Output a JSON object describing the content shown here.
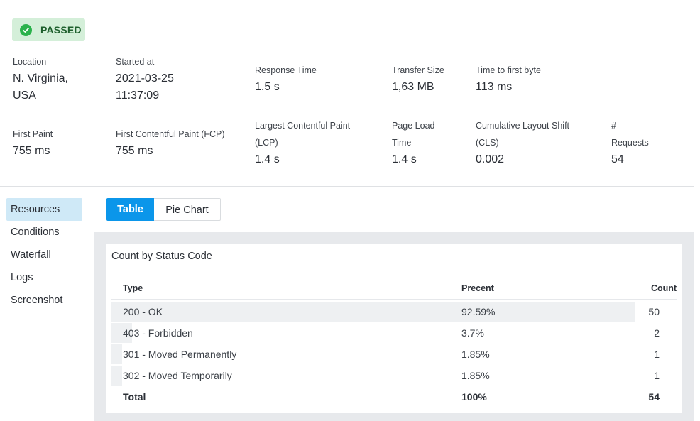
{
  "status": {
    "label": "PASSED",
    "color": "#2bb24c",
    "icon": "check-circle-icon"
  },
  "metrics": {
    "location": {
      "label": "Location",
      "value_line1": "N. Virginia,",
      "value_line2": "USA"
    },
    "started_at": {
      "label": "Started at",
      "value_line1": "2021-03-25",
      "value_line2": "11:37:09"
    },
    "response_time": {
      "label": "Response Time",
      "value": "1.5 s"
    },
    "transfer_size": {
      "label": "Transfer Size",
      "value": "1,63 MB"
    },
    "ttfb": {
      "label": "Time to first byte",
      "value": "113 ms"
    },
    "first_paint": {
      "label": "First Paint",
      "value": "755 ms"
    },
    "fcp": {
      "label": "First Contentful Paint (FCP)",
      "value": "755 ms"
    },
    "lcp": {
      "label_line1": "Largest Contentful Paint",
      "label_line2": "(LCP)",
      "value": "1.4 s"
    },
    "page_load": {
      "label_line1": "Page Load",
      "label_line2": "Time",
      "value": "1.4 s"
    },
    "cls": {
      "label_line1": "Cumulative Layout Shift",
      "label_line2": "(CLS)",
      "value": "0.002"
    },
    "requests": {
      "label_line1": "#",
      "label_line2": "Requests",
      "value": "54"
    }
  },
  "sidebar": {
    "items": [
      {
        "label": "Resources",
        "active": true
      },
      {
        "label": "Conditions"
      },
      {
        "label": "Waterfall"
      },
      {
        "label": "Logs"
      },
      {
        "label": "Screenshot"
      }
    ]
  },
  "view_toggle": {
    "table_label": "Table",
    "pie_label": "Pie Chart",
    "selected": "Table"
  },
  "status_table": {
    "title": "Count by Status Code",
    "headers": {
      "type": "Type",
      "percent": "Precent",
      "count": "Count"
    },
    "rows": [
      {
        "type": "200 - OK",
        "percent": "92.59%",
        "count": "50",
        "share": 0.9259
      },
      {
        "type": "403 - Forbidden",
        "percent": "3.7%",
        "count": "2",
        "share": 0.037
      },
      {
        "type": "301 - Moved Permanently",
        "percent": "1.85%",
        "count": "1",
        "share": 0.0185
      },
      {
        "type": "302 - Moved Temporarily",
        "percent": "1.85%",
        "count": "1",
        "share": 0.0185
      }
    ],
    "total": {
      "type": "Total",
      "percent": "100%",
      "count": "54"
    }
  }
}
